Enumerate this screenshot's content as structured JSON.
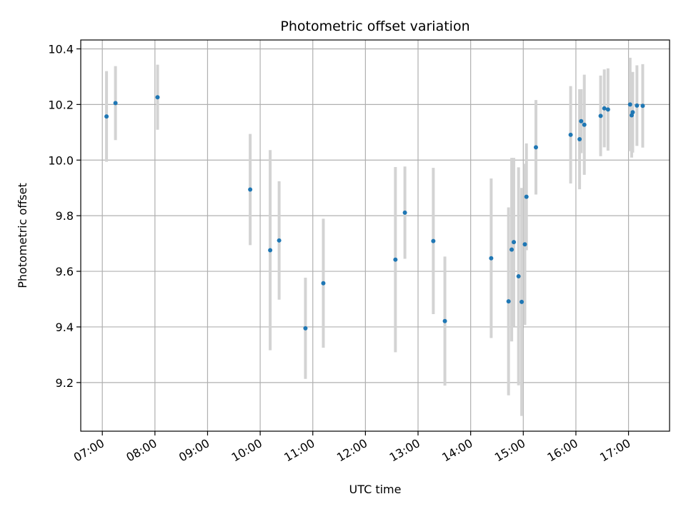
{
  "chart_data": {
    "type": "scatter",
    "title": "Photometric offset variation",
    "xlabel": "UTC time",
    "ylabel": "Photometric offset",
    "x_unit": "hours UTC",
    "xlim": [
      6.59,
      17.78
    ],
    "ylim": [
      9.025,
      10.432
    ],
    "x_ticks": [
      7,
      8,
      9,
      10,
      11,
      12,
      13,
      14,
      15,
      16,
      17
    ],
    "x_tick_labels": [
      "07:00",
      "08:00",
      "09:00",
      "10:00",
      "11:00",
      "12:00",
      "13:00",
      "14:00",
      "15:00",
      "16:00",
      "17:00"
    ],
    "y_ticks": [
      9.2,
      9.4,
      9.6,
      9.8,
      10.0,
      10.2,
      10.4
    ],
    "y_tick_labels": [
      "9.2",
      "9.4",
      "9.6",
      "9.8",
      "10.0",
      "10.2",
      "10.4"
    ],
    "grid": true,
    "legend": "none",
    "colors": {
      "point": "#1f77b4",
      "errorbar": "#d3d3d3",
      "grid": "#b0b0b0"
    },
    "points": [
      {
        "x": 7.08,
        "y": 10.157,
        "err": 0.163
      },
      {
        "x": 7.25,
        "y": 10.205,
        "err": 0.133
      },
      {
        "x": 8.05,
        "y": 10.226,
        "err": 0.117
      },
      {
        "x": 9.81,
        "y": 9.894,
        "err": 0.2
      },
      {
        "x": 10.19,
        "y": 9.676,
        "err": 0.36
      },
      {
        "x": 10.36,
        "y": 9.711,
        "err": 0.213
      },
      {
        "x": 10.86,
        "y": 9.395,
        "err": 0.182
      },
      {
        "x": 11.2,
        "y": 9.557,
        "err": 0.232
      },
      {
        "x": 12.57,
        "y": 9.642,
        "err": 0.333
      },
      {
        "x": 12.75,
        "y": 9.811,
        "err": 0.166
      },
      {
        "x": 13.29,
        "y": 9.709,
        "err": 0.263
      },
      {
        "x": 13.51,
        "y": 9.421,
        "err": 0.232
      },
      {
        "x": 14.39,
        "y": 9.647,
        "err": 0.287
      },
      {
        "x": 14.72,
        "y": 9.492,
        "err": 0.338
      },
      {
        "x": 14.78,
        "y": 9.678,
        "err": 0.33
      },
      {
        "x": 14.82,
        "y": 9.705,
        "err": 0.303
      },
      {
        "x": 14.91,
        "y": 9.582,
        "err": 0.392
      },
      {
        "x": 14.97,
        "y": 9.49,
        "err": 0.41
      },
      {
        "x": 15.03,
        "y": 9.697,
        "err": 0.29
      },
      {
        "x": 15.06,
        "y": 9.868,
        "err": 0.192
      },
      {
        "x": 15.24,
        "y": 10.046,
        "err": 0.17
      },
      {
        "x": 15.9,
        "y": 10.091,
        "err": 0.175
      },
      {
        "x": 16.07,
        "y": 10.075,
        "err": 0.18
      },
      {
        "x": 16.1,
        "y": 10.14,
        "err": 0.115
      },
      {
        "x": 16.16,
        "y": 10.127,
        "err": 0.18
      },
      {
        "x": 16.47,
        "y": 10.159,
        "err": 0.145
      },
      {
        "x": 16.54,
        "y": 10.186,
        "err": 0.14
      },
      {
        "x": 16.61,
        "y": 10.182,
        "err": 0.148
      },
      {
        "x": 17.03,
        "y": 10.2,
        "err": 0.168
      },
      {
        "x": 17.06,
        "y": 10.161,
        "err": 0.152
      },
      {
        "x": 17.08,
        "y": 10.172,
        "err": 0.145
      },
      {
        "x": 17.16,
        "y": 10.196,
        "err": 0.145
      },
      {
        "x": 17.27,
        "y": 10.195,
        "err": 0.15
      }
    ]
  }
}
